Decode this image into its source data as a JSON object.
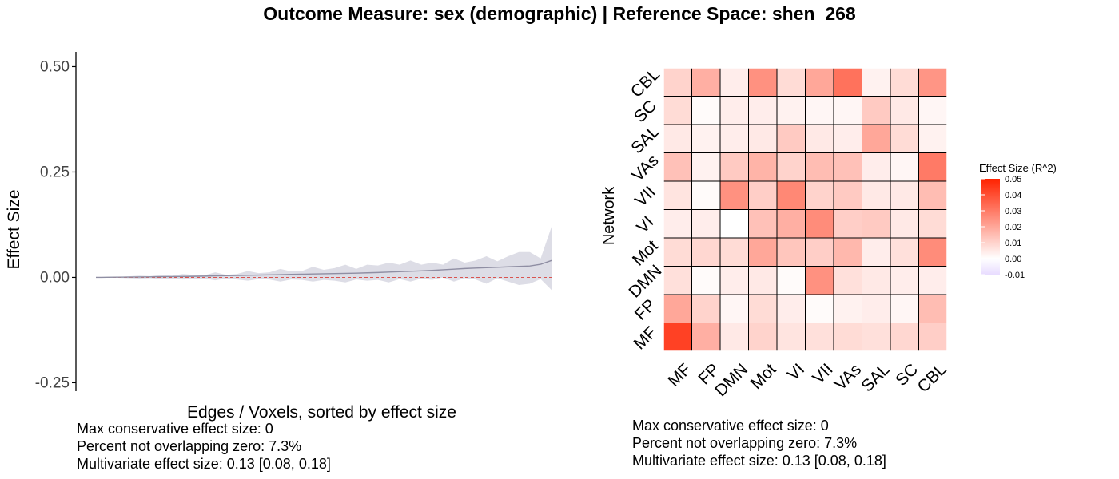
{
  "title": "Outcome Measure: sex (demographic)   |  Reference Space: shen_268",
  "chart_data": [
    {
      "type": "area",
      "xlabel": "Edges / Voxels, sorted by effect size",
      "ylabel": "Effect Size",
      "ylim": [
        -0.27,
        0.535
      ],
      "yticks": [
        0.5,
        0.25,
        0.0,
        -0.25
      ],
      "ytick_labels": [
        "0.50",
        "0.25",
        "0.00",
        "-0.25"
      ],
      "grid": false,
      "reference_line": 0,
      "colors": {
        "line": "#8f8ea3",
        "band": "#dddde6",
        "reference": "#d9534f"
      },
      "series": [
        {
          "values": [
            0.0,
            0.0002,
            0.0005,
            0.0008,
            0.001,
            0.0013,
            0.0016,
            0.0019,
            0.0022,
            0.0025,
            0.003,
            0.0035,
            0.004,
            0.0045,
            0.005,
            0.0055,
            0.006,
            0.0065,
            0.007,
            0.0075,
            0.008,
            0.0085,
            0.009,
            0.0095,
            0.01,
            0.0108,
            0.0115,
            0.0125,
            0.0135,
            0.0145,
            0.0155,
            0.0165,
            0.018,
            0.0195,
            0.021,
            0.022,
            0.023,
            0.024,
            0.025,
            0.026,
            0.027,
            0.031,
            0.04
          ],
          "upper": [
            0.0003,
            0.0006,
            0.0012,
            0.0025,
            0.004,
            0.003,
            0.006,
            0.004,
            0.008,
            0.006,
            0.005,
            0.012,
            0.006,
            0.008,
            0.015,
            0.01,
            0.012,
            0.02,
            0.014,
            0.015,
            0.025,
            0.018,
            0.022,
            0.03,
            0.02,
            0.03,
            0.028,
            0.035,
            0.03,
            0.04,
            0.03,
            0.035,
            0.03,
            0.045,
            0.035,
            0.04,
            0.05,
            0.038,
            0.05,
            0.06,
            0.06,
            0.045,
            0.12
          ],
          "lower": [
            -0.0003,
            -0.0006,
            -0.001,
            -0.002,
            -0.003,
            -0.002,
            -0.004,
            -0.003,
            -0.005,
            -0.004,
            -0.003,
            -0.007,
            -0.003,
            -0.005,
            -0.008,
            -0.004,
            -0.005,
            -0.01,
            -0.005,
            -0.006,
            -0.01,
            -0.006,
            -0.008,
            -0.012,
            -0.005,
            -0.008,
            -0.006,
            -0.012,
            -0.004,
            -0.01,
            -0.003,
            -0.006,
            0.0,
            -0.01,
            -0.002,
            -0.005,
            -0.015,
            -0.002,
            -0.01,
            -0.018,
            -0.015,
            -0.004,
            -0.03
          ]
        }
      ],
      "annotations": [
        "Max conservative effect size: 0",
        "Percent not overlapping zero: 7.3%",
        "Multivariate effect size: 0.13 [0.08, 0.18]"
      ]
    },
    {
      "type": "heatmap",
      "xlabel": "Network",
      "ylabel": "Network",
      "categories": [
        "MF",
        "FP",
        "DMN",
        "Mot",
        "VI",
        "VII",
        "VAs",
        "SAL",
        "SC",
        "CBL"
      ],
      "rows_top_to_bottom": [
        "CBL",
        "SC",
        "SAL",
        "VAs",
        "VII",
        "VI",
        "Mot",
        "DMN",
        "FP",
        "MF"
      ],
      "values": [
        [
          0.01,
          0.018,
          0.004,
          0.025,
          0.008,
          0.02,
          0.032,
          0.003,
          0.008,
          0.024
        ],
        [
          0.008,
          0.001,
          0.004,
          0.004,
          0.003,
          0.002,
          0.002,
          0.012,
          0.005,
          0.002
        ],
        [
          0.005,
          0.003,
          0.004,
          0.005,
          0.012,
          0.005,
          0.004,
          0.02,
          0.008,
          0.003
        ],
        [
          0.014,
          0.003,
          0.012,
          0.017,
          0.01,
          0.015,
          0.014,
          0.004,
          0.002,
          0.03
        ],
        [
          0.006,
          0.001,
          0.025,
          0.011,
          0.027,
          0.01,
          0.012,
          0.005,
          0.005,
          0.015
        ],
        [
          0.004,
          0.004,
          0.0,
          0.014,
          0.018,
          0.026,
          0.011,
          0.012,
          0.005,
          0.008
        ],
        [
          0.008,
          0.009,
          0.008,
          0.02,
          0.013,
          0.011,
          0.016,
          0.004,
          0.007,
          0.026
        ],
        [
          0.007,
          0.001,
          0.004,
          0.005,
          0.001,
          0.025,
          0.007,
          0.005,
          0.004,
          0.004
        ],
        [
          0.02,
          0.01,
          0.002,
          0.008,
          0.004,
          0.001,
          0.003,
          0.004,
          0.002,
          0.015
        ],
        [
          0.043,
          0.018,
          0.005,
          0.01,
          0.006,
          0.007,
          0.008,
          0.007,
          0.009,
          0.011
        ]
      ],
      "colorbar": {
        "title": "Effect Size (R^2)",
        "ticks": [
          0.05,
          0.04,
          0.03,
          0.02,
          0.01,
          0.0,
          -0.01
        ],
        "tick_labels": [
          "0.05",
          "0.04",
          "0.03",
          "0.02",
          "0.01",
          "0.00",
          "-0.01"
        ],
        "range": [
          -0.01,
          0.05
        ],
        "colors": {
          "high": "#ff2200",
          "mid": "#ffffff",
          "low": "#e8dcff"
        }
      },
      "annotations": [
        "Max conservative effect size: 0",
        "Percent not overlapping zero: 7.3%",
        "Multivariate effect size: 0.13 [0.08, 0.18]"
      ]
    }
  ]
}
